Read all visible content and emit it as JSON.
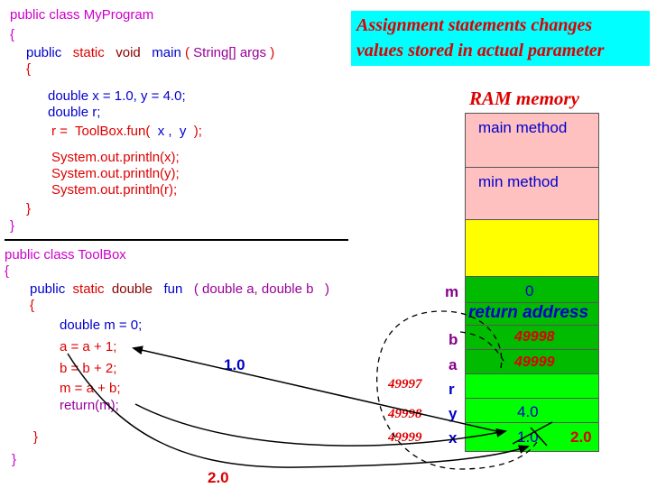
{
  "code_main": {
    "class_decl": "public class MyProgram",
    "open_brace": "{",
    "method_public": "public",
    "method_static": "static",
    "method_void": "void",
    "method_name": "main",
    "method_open_paren": "(",
    "method_params": "String[] args",
    "method_close_paren": ")",
    "method_open_brace": "{",
    "decl_xy": "double x = 1.0, y = 4.0;",
    "decl_r": "double r;",
    "call_prefix": "r =  ToolBox.fun(",
    "call_args": "x ,  y",
    "call_suffix": ");",
    "print_x": "System.out.println(x);",
    "print_y": "System.out.println(y);",
    "print_r": "System.out.println(r);",
    "method_close_brace": "}",
    "class_close_brace": "}"
  },
  "code_toolbox": {
    "class_decl": "public class ToolBox",
    "open_brace": "{",
    "method_public": "public",
    "method_static": "static",
    "method_double": "double",
    "method_name": "fun",
    "method_params": "( double a, double b   )",
    "method_open_brace": "{",
    "decl_m": "double m = 0;",
    "stmt_a": "a = a + 1;",
    "stmt_b": "b = b + 2;",
    "stmt_m": "m = a + b;",
    "stmt_return": "return(m);",
    "method_close_brace": "}",
    "class_close_brace": "}"
  },
  "banner": {
    "line1": "Assignment statements changes",
    "line2": "values stored in actual parameter"
  },
  "ram": {
    "title": "RAM memory",
    "main_method": "main method",
    "min_method": "min method",
    "m_label": "m",
    "m_value": "0",
    "return_address": "return address",
    "b_label": "b",
    "b_value": "49998",
    "a_label": "a",
    "a_value": "49999",
    "r_addr": "49997",
    "r_label": "r",
    "y_addr": "49998",
    "y_label": "y",
    "y_value": "4.0",
    "x_addr": "49999",
    "x_label": "x",
    "x_old_value": "1.0",
    "x_new_value": "2.0"
  },
  "arrows": {
    "read_value": "1.0",
    "write_value": "2.0"
  },
  "colors": {
    "banner_bg": "#00ffff",
    "pink": "#ffc0c0",
    "yellow": "#ffff00",
    "green": "#00bb00",
    "code_red": "#dd0000",
    "code_blue": "#0000cc",
    "code_magenta": "#cc00cc"
  }
}
